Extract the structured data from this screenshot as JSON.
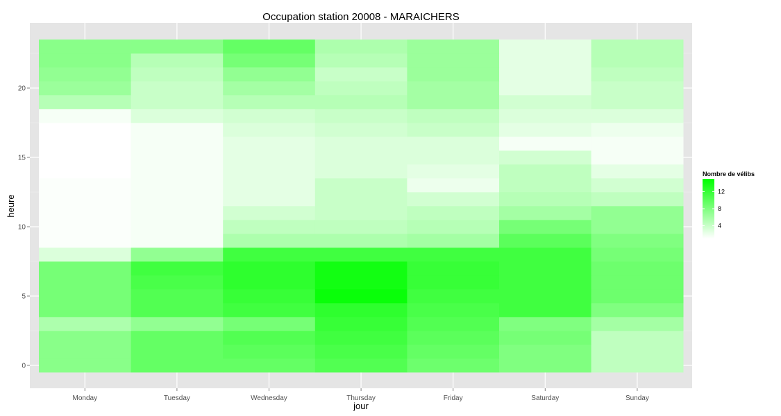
{
  "chart_data": {
    "type": "heatmap",
    "title": "Occupation station 20008 - MARAICHERS",
    "xlabel": "jour",
    "ylabel": "heure",
    "x_categories": [
      "Monday",
      "Tuesday",
      "Wednesday",
      "Thursday",
      "Friday",
      "Saturday",
      "Sunday"
    ],
    "y_values": [
      0,
      1,
      2,
      3,
      4,
      5,
      6,
      7,
      8,
      9,
      10,
      11,
      12,
      13,
      14,
      15,
      16,
      17,
      18,
      19,
      20,
      21,
      22,
      23
    ],
    "ylim": [
      -0.5,
      23.5
    ],
    "y_ticks": [
      0,
      5,
      10,
      15,
      20
    ],
    "grid": true,
    "legend": {
      "title": "Nombre de vélibs",
      "position": "right",
      "ticks": [
        4,
        8,
        12
      ],
      "range": [
        1,
        15
      ],
      "low_color": "#ffffff",
      "high_color": "#00ff00"
    },
    "values": [
      [
        7.5,
        9.5,
        9.5,
        10.5,
        9.0,
        8.0,
        4.5
      ],
      [
        7.5,
        9.5,
        10.0,
        11.0,
        9.5,
        8.0,
        4.5
      ],
      [
        7.5,
        9.5,
        10.5,
        11.5,
        10.0,
        8.5,
        4.5
      ],
      [
        5.5,
        7.0,
        8.5,
        12.0,
        10.5,
        8.0,
        6.0
      ],
      [
        8.5,
        10.5,
        11.5,
        12.5,
        11.0,
        11.5,
        8.0
      ],
      [
        8.5,
        10.5,
        12.0,
        14.5,
        11.5,
        11.5,
        9.0
      ],
      [
        8.5,
        11.0,
        12.5,
        14.0,
        12.0,
        11.5,
        9.0
      ],
      [
        8.5,
        11.5,
        12.5,
        14.0,
        12.0,
        11.5,
        9.0
      ],
      [
        3.0,
        7.0,
        11.5,
        11.5,
        11.5,
        11.5,
        8.5
      ],
      [
        1.2,
        1.5,
        5.5,
        5.5,
        6.0,
        10.0,
        8.0
      ],
      [
        1.2,
        1.5,
        4.5,
        4.5,
        5.0,
        8.5,
        7.0
      ],
      [
        1.2,
        1.5,
        3.5,
        4.0,
        4.5,
        6.0,
        7.0
      ],
      [
        1.2,
        1.5,
        2.5,
        4.0,
        3.5,
        5.0,
        4.5
      ],
      [
        1.2,
        1.5,
        2.5,
        4.0,
        2.0,
        4.5,
        3.5
      ],
      [
        1.0,
        1.5,
        2.5,
        3.0,
        2.5,
        4.5,
        2.5
      ],
      [
        1.0,
        1.5,
        2.5,
        3.0,
        3.0,
        3.5,
        1.5
      ],
      [
        1.0,
        1.5,
        2.5,
        3.0,
        3.0,
        1.5,
        1.5
      ],
      [
        1.0,
        1.5,
        3.0,
        3.5,
        4.0,
        2.5,
        2.0
      ],
      [
        1.5,
        3.0,
        3.5,
        4.0,
        4.5,
        3.0,
        3.0
      ],
      [
        5.0,
        4.0,
        5.0,
        5.0,
        6.0,
        3.5,
        4.0
      ],
      [
        6.5,
        4.0,
        6.0,
        4.5,
        6.0,
        2.5,
        4.0
      ],
      [
        7.0,
        4.5,
        7.0,
        4.0,
        6.5,
        2.5,
        4.5
      ],
      [
        7.5,
        5.0,
        8.5,
        5.0,
        6.5,
        2.5,
        5.0
      ],
      [
        7.5,
        7.5,
        9.5,
        5.5,
        6.5,
        2.5,
        5.0
      ]
    ]
  }
}
